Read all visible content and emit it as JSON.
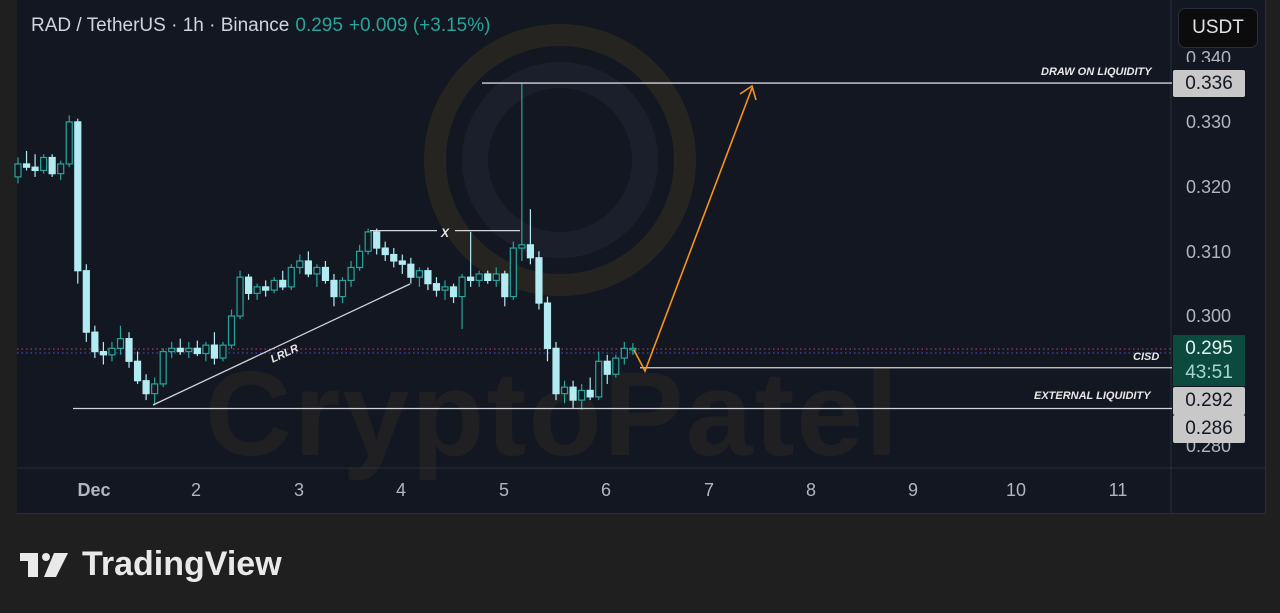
{
  "header": {
    "symbol": "RAD / TetherUS · 1h · Binance",
    "price": "0.295",
    "change": "+0.009 (+3.15%)"
  },
  "currency_button": "USDT",
  "watermark": "CryptoPatel",
  "brand": "TradingView",
  "colors": {
    "bg": "#131722",
    "up": "#26a69a",
    "down": "#b2ebf2",
    "arrow": "#f7931a",
    "annotation": "#d1d4dc",
    "current_price_bg": "#0b4a3c"
  },
  "price_labels": {
    "draw_on_liquidity": "0.336",
    "current": "0.295",
    "countdown": "43:51",
    "cisd": "0.292",
    "external_liquidity": "0.286"
  },
  "annotations": {
    "draw_on_liquidity": "DRAW ON LIQUIDITY",
    "cisd": "CISD",
    "external_liquidity": "EXTERNAL LIQUIDITY",
    "x_mark": "X",
    "lrlr": "LRLR"
  },
  "chart_data": {
    "type": "candlestick",
    "title": "RAD / TetherUS · 1h · Binance",
    "y_ticks": [
      "0.340",
      "0.330",
      "0.320",
      "0.310",
      "0.300",
      "0.280"
    ],
    "x_ticks": [
      "Dec",
      "2",
      "3",
      "4",
      "5",
      "6",
      "7",
      "8",
      "9",
      "10",
      "11"
    ],
    "ylim": [
      0.2775,
      0.3415
    ],
    "grid": false,
    "levels": {
      "draw_on_liquidity": 0.336,
      "cisd": 0.292,
      "external_liquidity": 0.286,
      "x_level": 0.3132
    },
    "candles_ohlc": [
      [
        "Nov 30 06:00",
        0.3215,
        0.3245,
        0.3205,
        0.3235
      ],
      [
        "Nov 30 08:00",
        0.3235,
        0.3255,
        0.3225,
        0.323
      ],
      [
        "Nov 30 10:00",
        0.323,
        0.325,
        0.3215,
        0.3225
      ],
      [
        "Nov 30 12:00",
        0.3225,
        0.325,
        0.322,
        0.3245
      ],
      [
        "Nov 30 14:00",
        0.3245,
        0.325,
        0.3215,
        0.322
      ],
      [
        "Nov 30 16:00",
        0.322,
        0.324,
        0.321,
        0.3235
      ],
      [
        "Nov 30 18:00",
        0.3235,
        0.331,
        0.323,
        0.33
      ],
      [
        "Nov 30 20:00",
        0.33,
        0.3305,
        0.305,
        0.307
      ],
      [
        "Nov 30 22:00",
        0.307,
        0.308,
        0.296,
        0.2975
      ],
      [
        "Dec 1 00:00",
        0.2975,
        0.2985,
        0.2935,
        0.2945
      ],
      [
        "Dec 1 02:00",
        0.2945,
        0.296,
        0.2925,
        0.294
      ],
      [
        "Dec 1 04:00",
        0.294,
        0.296,
        0.293,
        0.295
      ],
      [
        "Dec 1 06:00",
        0.295,
        0.2985,
        0.294,
        0.2965
      ],
      [
        "Dec 1 08:00",
        0.2965,
        0.2975,
        0.292,
        0.293
      ],
      [
        "Dec 1 10:00",
        0.293,
        0.2945,
        0.2895,
        0.29
      ],
      [
        "Dec 1 12:00",
        0.29,
        0.291,
        0.287,
        0.288
      ],
      [
        "Dec 1 14:00",
        0.288,
        0.2905,
        0.2862,
        0.2895
      ],
      [
        "Dec 1 16:00",
        0.2895,
        0.295,
        0.289,
        0.2945
      ],
      [
        "Dec 1 18:00",
        0.2945,
        0.296,
        0.2935,
        0.295
      ],
      [
        "Dec 1 20:00",
        0.295,
        0.2965,
        0.294,
        0.2945
      ],
      [
        "Dec 1 22:00",
        0.2945,
        0.296,
        0.2935,
        0.295
      ],
      [
        "Dec 2 00:00",
        0.295,
        0.2962,
        0.2938,
        0.2942
      ],
      [
        "Dec 2 02:00",
        0.2942,
        0.296,
        0.293,
        0.2955
      ],
      [
        "Dec 2 04:00",
        0.2955,
        0.2975,
        0.2925,
        0.2935
      ],
      [
        "Dec 2 06:00",
        0.2935,
        0.296,
        0.293,
        0.2955
      ],
      [
        "Dec 2 08:00",
        0.2955,
        0.301,
        0.295,
        0.3
      ],
      [
        "Dec 2 10:00",
        0.3,
        0.307,
        0.2995,
        0.306
      ],
      [
        "Dec 2 12:00",
        0.306,
        0.3065,
        0.3025,
        0.3035
      ],
      [
        "Dec 2 14:00",
        0.3035,
        0.305,
        0.3025,
        0.3045
      ],
      [
        "Dec 2 16:00",
        0.3045,
        0.3055,
        0.303,
        0.304
      ],
      [
        "Dec 2 18:00",
        0.304,
        0.306,
        0.3035,
        0.3055
      ],
      [
        "Dec 2 20:00",
        0.3055,
        0.307,
        0.304,
        0.3045
      ],
      [
        "Dec 2 22:00",
        0.3045,
        0.308,
        0.304,
        0.3075
      ],
      [
        "Dec 3 00:00",
        0.3075,
        0.3095,
        0.3065,
        0.3085
      ],
      [
        "Dec 3 02:00",
        0.3085,
        0.31,
        0.306,
        0.3065
      ],
      [
        "Dec 3 04:00",
        0.3065,
        0.308,
        0.3045,
        0.3075
      ],
      [
        "Dec 3 06:00",
        0.3075,
        0.3085,
        0.305,
        0.3055
      ],
      [
        "Dec 3 08:00",
        0.3055,
        0.3065,
        0.3015,
        0.303
      ],
      [
        "Dec 3 10:00",
        0.303,
        0.306,
        0.302,
        0.3055
      ],
      [
        "Dec 3 12:00",
        0.3055,
        0.3085,
        0.3045,
        0.3075
      ],
      [
        "Dec 3 14:00",
        0.3075,
        0.311,
        0.307,
        0.31
      ],
      [
        "Dec 3 16:00",
        0.31,
        0.3135,
        0.3095,
        0.313
      ],
      [
        "Dec 3 18:00",
        0.313,
        0.3135,
        0.3095,
        0.3105
      ],
      [
        "Dec 3 20:00",
        0.3105,
        0.3115,
        0.3085,
        0.3095
      ],
      [
        "Dec 3 22:00",
        0.3095,
        0.3105,
        0.3075,
        0.3085
      ],
      [
        "Dec 4 00:00",
        0.3085,
        0.3095,
        0.3065,
        0.308
      ],
      [
        "Dec 4 02:00",
        0.308,
        0.309,
        0.305,
        0.306
      ],
      [
        "Dec 4 04:00",
        0.306,
        0.3075,
        0.3045,
        0.307
      ],
      [
        "Dec 4 06:00",
        0.307,
        0.3075,
        0.304,
        0.305
      ],
      [
        "Dec 4 08:00",
        0.305,
        0.306,
        0.303,
        0.304
      ],
      [
        "Dec 4 10:00",
        0.304,
        0.3055,
        0.3025,
        0.3045
      ],
      [
        "Dec 4 12:00",
        0.3045,
        0.305,
        0.302,
        0.303
      ],
      [
        "Dec 4 14:00",
        0.303,
        0.3065,
        0.298,
        0.306
      ],
      [
        "Dec 4 16:00",
        0.306,
        0.313,
        0.3045,
        0.3055
      ],
      [
        "Dec 4 18:00",
        0.3055,
        0.307,
        0.3045,
        0.3065
      ],
      [
        "Dec 4 20:00",
        0.3065,
        0.307,
        0.305,
        0.3055
      ],
      [
        "Dec 4 22:00",
        0.3055,
        0.3075,
        0.3045,
        0.3065
      ],
      [
        "Dec 5 00:00",
        0.3065,
        0.307,
        0.3015,
        0.303
      ],
      [
        "Dec 5 02:00",
        0.303,
        0.3115,
        0.3025,
        0.3105
      ],
      [
        "Dec 5 04:00",
        0.3105,
        0.336,
        0.3085,
        0.311
      ],
      [
        "Dec 5 06:00",
        0.311,
        0.3165,
        0.308,
        0.309
      ],
      [
        "Dec 5 08:00",
        0.309,
        0.31,
        0.301,
        0.302
      ],
      [
        "Dec 5 10:00",
        0.302,
        0.303,
        0.293,
        0.295
      ],
      [
        "Dec 5 12:00",
        0.295,
        0.296,
        0.287,
        0.288
      ],
      [
        "Dec 5 14:00",
        0.288,
        0.29,
        0.2865,
        0.289
      ],
      [
        "Dec 5 16:00",
        0.289,
        0.29,
        0.2858,
        0.287
      ],
      [
        "Dec 5 18:00",
        0.287,
        0.2895,
        0.2855,
        0.2885
      ],
      [
        "Dec 5 20:00",
        0.2885,
        0.2905,
        0.287,
        0.2875
      ],
      [
        "Dec 5 22:00",
        0.2875,
        0.2945,
        0.287,
        0.293
      ],
      [
        "Dec 6 00:00",
        0.293,
        0.294,
        0.2895,
        0.291
      ],
      [
        "Dec 6 02:00",
        0.291,
        0.294,
        0.2905,
        0.2935
      ],
      [
        "Dec 6 04:00",
        0.2935,
        0.296,
        0.2925,
        0.295
      ],
      [
        "Dec 6 06:00",
        0.295,
        0.2958,
        0.294,
        0.295
      ]
    ]
  }
}
